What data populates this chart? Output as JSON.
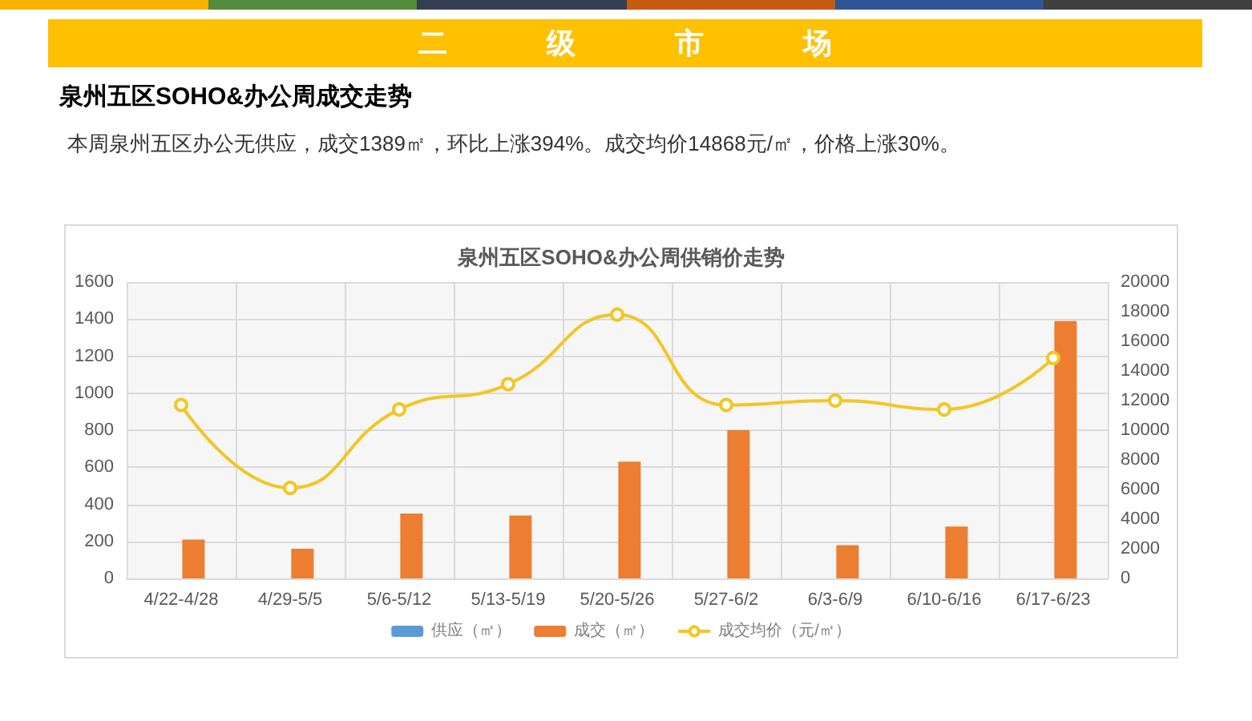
{
  "chart_data": {
    "type": "bar",
    "title": "泉州五区SOHO&办公周供销价走势",
    "annotations": [
      "二级市场",
      "泉州五区SOHO&办公周成交走势",
      "本周泉州五区办公无供应，成交1389㎡，环比上涨394%。成交均价14868元/㎡，价格上涨30%。"
    ],
    "categories": [
      "4/22-4/28",
      "4/29-5/5",
      "5/6-5/12",
      "5/13-5/19",
      "5/20-5/26",
      "5/27-6/2",
      "6/3-6/9",
      "6/10-6/16",
      "6/17-6/23"
    ],
    "series": [
      {
        "name": "供应（㎡）",
        "color": "#5b9bd5",
        "values": [
          null,
          null,
          null,
          null,
          null,
          null,
          null,
          null,
          null
        ]
      },
      {
        "name": "成交（㎡）",
        "color": "#ed7d31",
        "values": [
          210,
          160,
          350,
          340,
          630,
          800,
          180,
          280,
          1389
        ]
      },
      {
        "name": "成交均价（元/㎡）",
        "type": "line",
        "axis": "y2",
        "color": "#f2c624",
        "values": [
          11700,
          6100,
          11400,
          13100,
          17800,
          11700,
          12000,
          11400,
          14868
        ]
      }
    ],
    "ylim": [
      0,
      1600
    ],
    "yticks": [
      0,
      200,
      400,
      600,
      800,
      1000,
      1200,
      1400,
      1600
    ],
    "y2lim": [
      0,
      20000
    ],
    "y2ticks": [
      0,
      2000,
      4000,
      6000,
      8000,
      10000,
      12000,
      14000,
      16000,
      18000,
      20000
    ],
    "grid": true,
    "legend": "bottom",
    "marker": "circle"
  }
}
